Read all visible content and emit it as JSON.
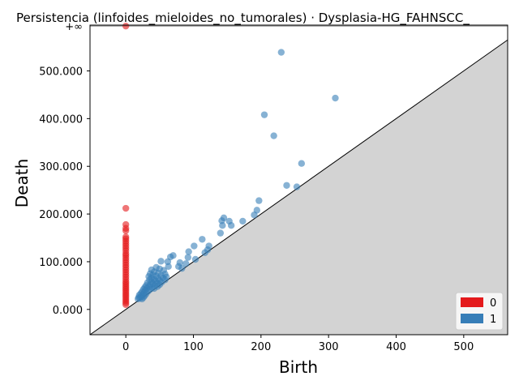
{
  "chart_data": {
    "type": "scatter",
    "title": "Persistencia (linfoides_mieloides_no_tumorales) · Dysplasia-HG_FAHNSCC_",
    "xlabel": "Birth",
    "ylabel": "Death",
    "xlim": [
      -53,
      565
    ],
    "ylim": [
      -53000,
      596000
    ],
    "x_ticks": [
      0,
      100,
      200,
      300,
      400,
      500
    ],
    "x_tick_labels": [
      "0",
      "100",
      "200",
      "300",
      "400",
      "500"
    ],
    "y_ticks": [
      0,
      100000,
      200000,
      300000,
      400000,
      500000
    ],
    "y_tick_labels": [
      "0.000",
      "100.000",
      "200.000",
      "300.000",
      "400.000",
      "500.000"
    ],
    "infinity_label": "+∞",
    "infinity_y": 594000,
    "grid": false,
    "diagonal": true,
    "diagonal_fill_color": "#d3d3d3",
    "legend_position": "bottom-right",
    "series": [
      {
        "name": "0",
        "color": "#e41a1c",
        "points": [
          [
            0,
            594000
          ],
          [
            0,
            212000
          ],
          [
            0,
            178000
          ],
          [
            0,
            170000
          ],
          [
            0,
            165000
          ],
          [
            0,
            152000
          ],
          [
            0,
            148000
          ],
          [
            0,
            143000
          ],
          [
            0,
            138000
          ],
          [
            0,
            133000
          ],
          [
            0,
            128000
          ],
          [
            0,
            123000
          ],
          [
            0,
            117000
          ],
          [
            0,
            113000
          ],
          [
            0,
            108000
          ],
          [
            0,
            103000
          ],
          [
            0,
            98000
          ],
          [
            0,
            93000
          ],
          [
            0,
            88000
          ],
          [
            0,
            83000
          ],
          [
            0,
            78000
          ],
          [
            0,
            73000
          ],
          [
            0,
            68000
          ],
          [
            0,
            63000
          ],
          [
            0,
            58000
          ],
          [
            0,
            54000
          ],
          [
            0,
            50000
          ],
          [
            0,
            46000
          ],
          [
            0,
            42000
          ],
          [
            0,
            38000
          ],
          [
            0,
            34000
          ],
          [
            0,
            30000
          ],
          [
            0,
            26000
          ],
          [
            0,
            22000
          ],
          [
            0,
            18000
          ],
          [
            0,
            14000
          ],
          [
            0,
            10000
          ]
        ]
      },
      {
        "name": "1",
        "color": "#377eb8",
        "points": [
          [
            230,
            539000
          ],
          [
            310,
            443000
          ],
          [
            205,
            408000
          ],
          [
            219,
            364000
          ],
          [
            260,
            306000
          ],
          [
            238,
            260000
          ],
          [
            253,
            257000
          ],
          [
            197,
            228000
          ],
          [
            194,
            208000
          ],
          [
            190,
            198000
          ],
          [
            145,
            192000
          ],
          [
            142,
            186000
          ],
          [
            153,
            185000
          ],
          [
            173,
            185000
          ],
          [
            143,
            176000
          ],
          [
            156,
            176000
          ],
          [
            140,
            160000
          ],
          [
            113,
            147000
          ],
          [
            101,
            133000
          ],
          [
            123,
            133000
          ],
          [
            121,
            125000
          ],
          [
            93,
            121000
          ],
          [
            117,
            119000
          ],
          [
            70,
            113000
          ],
          [
            66,
            110000
          ],
          [
            92,
            109000
          ],
          [
            103,
            105000
          ],
          [
            52,
            101000
          ],
          [
            62,
            100000
          ],
          [
            80,
            98000
          ],
          [
            89,
            96000
          ],
          [
            78,
            90000
          ],
          [
            83,
            86000
          ],
          [
            63,
            90000
          ],
          [
            45,
            88000
          ],
          [
            50,
            85000
          ],
          [
            38,
            83000
          ],
          [
            56,
            82000
          ],
          [
            42,
            79000
          ],
          [
            48,
            76000
          ],
          [
            36,
            75000
          ],
          [
            58,
            74000
          ],
          [
            40,
            72000
          ],
          [
            52,
            71000
          ],
          [
            45,
            70000
          ],
          [
            34,
            69000
          ],
          [
            60,
            68000
          ],
          [
            38,
            66000
          ],
          [
            55,
            66000
          ],
          [
            48,
            64000
          ],
          [
            42,
            63000
          ],
          [
            35,
            62000
          ],
          [
            58,
            62000
          ],
          [
            50,
            60000
          ],
          [
            44,
            59000
          ],
          [
            38,
            58000
          ],
          [
            53,
            57000
          ],
          [
            32,
            56000
          ],
          [
            46,
            55000
          ],
          [
            40,
            54000
          ],
          [
            36,
            52000
          ],
          [
            50,
            52000
          ],
          [
            30,
            50000
          ],
          [
            43,
            50000
          ],
          [
            34,
            48000
          ],
          [
            47,
            48000
          ],
          [
            28,
            46000
          ],
          [
            39,
            46000
          ],
          [
            31,
            44000
          ],
          [
            42,
            44000
          ],
          [
            26,
            42000
          ],
          [
            36,
            42000
          ],
          [
            29,
            40000
          ],
          [
            33,
            38000
          ],
          [
            24,
            37000
          ],
          [
            27,
            35000
          ],
          [
            22,
            33000
          ],
          [
            30,
            33000
          ],
          [
            25,
            31000
          ],
          [
            20,
            30000
          ],
          [
            28,
            29000
          ],
          [
            23,
            27000
          ],
          [
            19,
            25000
          ],
          [
            26,
            25000
          ],
          [
            21,
            24000
          ],
          [
            18,
            22000
          ],
          [
            24,
            22000
          ]
        ]
      }
    ]
  }
}
